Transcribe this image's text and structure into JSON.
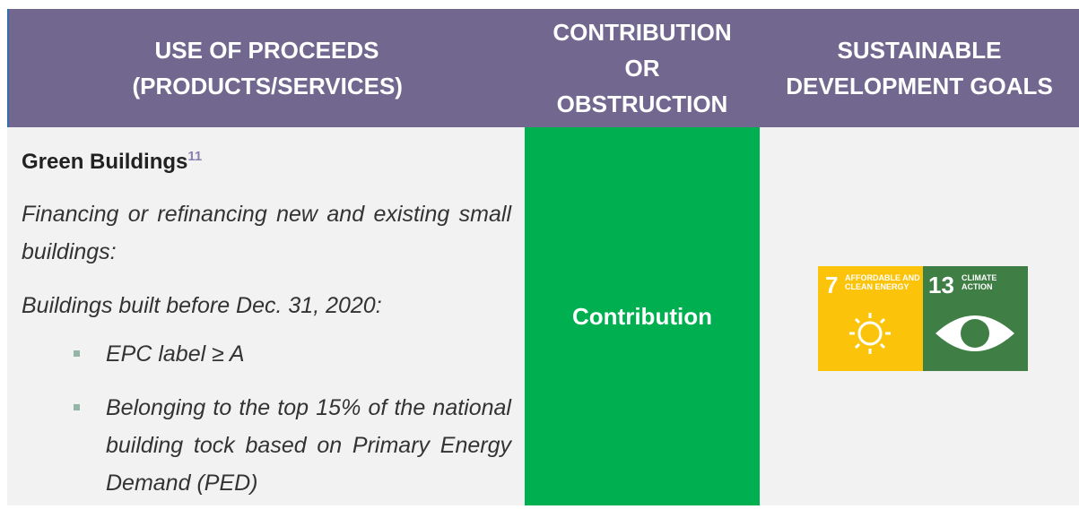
{
  "header": {
    "columns": [
      "USE OF PROCEEDS (PRODUCTS/SERVICES)",
      "CONTRIBUTION OR OBSTRUCTION",
      "SUSTAINABLE DEVELOPMENT GOALS"
    ]
  },
  "row": {
    "title": "Green Buildings",
    "footnote": "11",
    "paragraphs": [
      "Financing or refinancing new and existing small buildings:",
      "Buildings built before Dec. 31, 2020:"
    ],
    "bullets": [
      "EPC label ≥ A",
      "Belonging to the top 15% of the national building tock based on Primary Energy Demand (PED)"
    ],
    "contribution": "Contribution",
    "sdgs": [
      {
        "number": "7",
        "label": "AFFORDABLE AND CLEAN ENERGY"
      },
      {
        "number": "13",
        "label": "CLIMATE ACTION"
      }
    ]
  }
}
